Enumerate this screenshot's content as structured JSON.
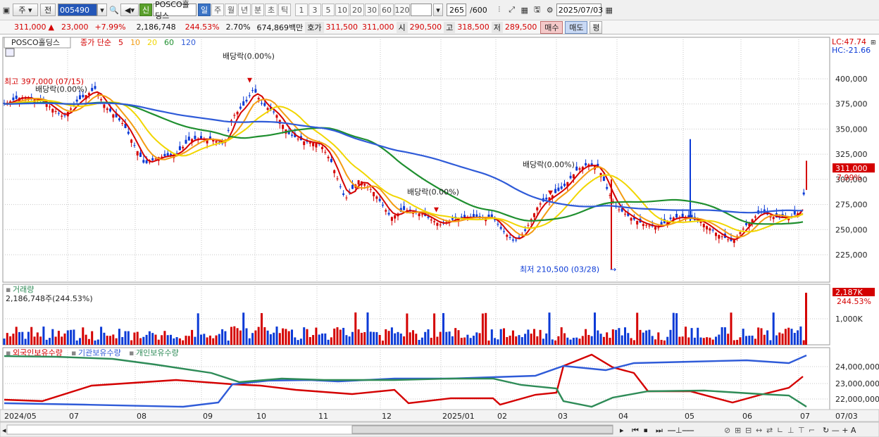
{
  "toolbar": {
    "period_type": "주",
    "market_type": "전",
    "code": "005490",
    "stock_name": "POSCO홀딩스",
    "new_badge": "신",
    "periods": [
      "일",
      "주",
      "월",
      "년",
      "분",
      "초",
      "틱"
    ],
    "active_period": "일",
    "tick_numbers": [
      "1",
      "3",
      "5",
      "10",
      "20",
      "30",
      "60",
      "120"
    ],
    "count": "265",
    "count_total": "/600",
    "date": "2025/07/03"
  },
  "quote": {
    "price": "311,000",
    "change_arrow": "▲",
    "change": "23,000",
    "change_pct": "+7.99%",
    "volume": "2,186,748",
    "volume_ratio": "244.53%",
    "turnover": "2.70%",
    "amount": "674,869백만",
    "bid_label": "호가",
    "bid1": "311,500",
    "bid2": "311,000",
    "open_label": "시",
    "open": "290,500",
    "high_label": "고",
    "high": "318,500",
    "low_label": "저",
    "low": "289,500",
    "buy_label": "매수",
    "sell_label": "매도",
    "eval_label": "평"
  },
  "price_panel": {
    "title": "POSCO홀딩스",
    "legend_prefix": "종가 단순",
    "ma": [
      {
        "n": "5",
        "color": "#d40000"
      },
      {
        "n": "10",
        "color": "#f39c12"
      },
      {
        "n": "20",
        "color": "#f1d600"
      },
      {
        "n": "60",
        "color": "#1f8f2f"
      },
      {
        "n": "120",
        "color": "#2f5bd8"
      }
    ],
    "lc": "LC:47.74",
    "hc": "HC:-21.66",
    "yticks": [
      "400,000",
      "375,000",
      "350,000",
      "325,000",
      "300,000",
      "275,000",
      "250,000",
      "225,000"
    ],
    "current_tag": "311,000",
    "current_pct": "7.99%",
    "high_note": "최고 397,000 (07/15)",
    "low_note": "최저 210,500 (03/28)",
    "dividend_notes": [
      "배당락(0.00%)",
      "배당락(0.00%)",
      "배당락(0.00%)",
      "배당락(0.00%)"
    ]
  },
  "volume_panel": {
    "title": "거래량",
    "value": "2,186,748주(244.53%)",
    "ytick": "1,000K",
    "tag": "2,187K",
    "tag_pct": "244.53%"
  },
  "holder_panel": {
    "series": [
      {
        "name": "외국인보유수량",
        "color": "#d40000"
      },
      {
        "name": "기관보유수량",
        "color": "#2f5bd8"
      },
      {
        "name": "개인보유수량",
        "color": "#2e8b57"
      }
    ],
    "yticks": [
      "24,000,000",
      "23,000,000",
      "22,000,000"
    ]
  },
  "xaxis": {
    "labels": [
      "2024/05",
      "07",
      "08",
      "09",
      "10",
      "11",
      "12",
      "2025/01",
      "02",
      "03",
      "04",
      "05",
      "06",
      "07"
    ],
    "right_label": "07/03"
  },
  "colors": {
    "up": "#d40000",
    "down": "#0b3ad6",
    "grid": "#c7c7c7"
  }
}
